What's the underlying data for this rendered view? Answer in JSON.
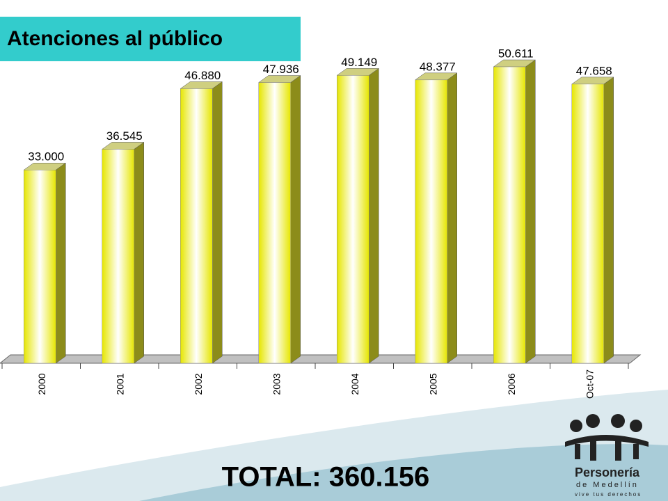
{
  "chart_data": {
    "type": "bar",
    "title": "Atenciones al público",
    "categories": [
      "2000",
      "2001",
      "2002",
      "2003",
      "2004",
      "2005",
      "2006",
      "Oct-07"
    ],
    "values": [
      33000,
      36545,
      46880,
      47936,
      49149,
      48377,
      50611,
      47658
    ],
    "value_labels": [
      "33.000",
      "36.545",
      "46.880",
      "47.936",
      "49.149",
      "48.377",
      "50.611",
      "47.658"
    ],
    "color": "#ffff33",
    "ylim": [
      0,
      60000
    ],
    "total": "TOTAL: 360.156"
  },
  "logo": {
    "name": "Personería",
    "city": "de Medellín",
    "slogan": "vive tus derechos"
  }
}
